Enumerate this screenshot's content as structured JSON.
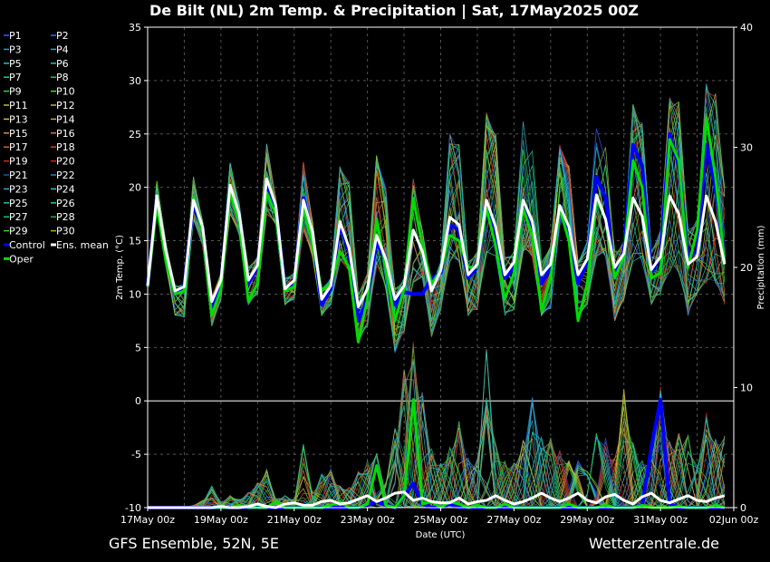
{
  "chart_data": {
    "type": "line",
    "title": "De Bilt  (NL)  2m Temp. & Precipitation | Sat, 17May2025 00Z",
    "xlabel": "Date (UTC)",
    "ylabel_left": "2m Temp. (°C)",
    "ylabel_right": "Precipitation (mm)",
    "ylim_left": [
      -10,
      35
    ],
    "ylim_right": [
      0,
      40
    ],
    "yticks_left": [
      "-10",
      "-5",
      "0",
      "5",
      "10",
      "15",
      "20",
      "25",
      "30",
      "35"
    ],
    "yticks_right": [
      "0",
      "10",
      "20",
      "30",
      "40"
    ],
    "x_tick_labels": [
      "17May 00z",
      "19May 00z",
      "21May 00z",
      "23May 00z",
      "25May 00z",
      "27May 00z",
      "29May 00z",
      "31May 00z",
      "02Jun 00z"
    ],
    "x_range_days": [
      0,
      16
    ],
    "step_hours": 6,
    "grid": true,
    "legend_position": "left",
    "legend": [
      {
        "name": "P1",
        "color": "#3a5bff"
      },
      {
        "name": "P2",
        "color": "#1f6fff"
      },
      {
        "name": "P3",
        "color": "#3e86d8"
      },
      {
        "name": "P4",
        "color": "#2aa6c8"
      },
      {
        "name": "P5",
        "color": "#30b8c8"
      },
      {
        "name": "P6",
        "color": "#20c8a0"
      },
      {
        "name": "P7",
        "color": "#20c890"
      },
      {
        "name": "P8",
        "color": "#28c060"
      },
      {
        "name": "P9",
        "color": "#30d050"
      },
      {
        "name": "P10",
        "color": "#40e020"
      },
      {
        "name": "P11",
        "color": "#b8c030"
      },
      {
        "name": "P12",
        "color": "#c8b040"
      },
      {
        "name": "P13",
        "color": "#d0c040"
      },
      {
        "name": "P14",
        "color": "#d0a030"
      },
      {
        "name": "P15",
        "color": "#c89060"
      },
      {
        "name": "P16",
        "color": "#c87850"
      },
      {
        "name": "P17",
        "color": "#d06030"
      },
      {
        "name": "P18",
        "color": "#d04020"
      },
      {
        "name": "P19",
        "color": "#c03020"
      },
      {
        "name": "P20",
        "color": "#d02020"
      },
      {
        "name": "P21",
        "color": "#2050c0"
      },
      {
        "name": "P22",
        "color": "#2080e0"
      },
      {
        "name": "P23",
        "color": "#40a0d0"
      },
      {
        "name": "P24",
        "color": "#30c0d0"
      },
      {
        "name": "P25",
        "color": "#20c0b0"
      },
      {
        "name": "P26",
        "color": "#20d0a0"
      },
      {
        "name": "P27",
        "color": "#20c070"
      },
      {
        "name": "P28",
        "color": "#20b040"
      },
      {
        "name": "P29",
        "color": "#40d020"
      },
      {
        "name": "P30",
        "color": "#a0c020"
      },
      {
        "name": "Control",
        "color": "#0000ff"
      },
      {
        "name": "Ens. mean",
        "color": "#ffffff"
      },
      {
        "name": "Oper",
        "color": "#00dd00"
      }
    ],
    "series": [
      {
        "name": "Ens. mean",
        "temp": [
          10.8,
          19.2,
          14,
          10.3,
          10.7,
          18.8,
          16.3,
          9.3,
          11.3,
          20.2,
          17.5,
          11.3,
          12.7,
          20.8,
          18.3,
          10.5,
          11.3,
          18.8,
          15.8,
          9.5,
          10.8,
          16.8,
          14.3,
          8.8,
          10.5,
          15.5,
          13.3,
          9.5,
          10.8,
          16,
          14,
          10.3,
          12.2,
          17.2,
          16.5,
          11.8,
          12.8,
          18.8,
          16.3,
          11.8,
          13,
          18.8,
          16.8,
          11.8,
          12.8,
          18.3,
          16.3,
          11.8,
          13.3,
          19.3,
          17,
          12.5,
          13.8,
          19,
          17.3,
          12.3,
          13.5,
          19.2,
          17.5,
          12.8,
          13.5,
          19.2,
          16.8,
          12.8
        ],
        "precip": [
          0,
          0,
          0,
          0,
          0,
          0,
          0,
          0,
          0.1,
          0,
          0,
          0.1,
          0.3,
          0.1,
          0,
          0.3,
          0.4,
          0.2,
          0.2,
          0.5,
          0.6,
          0.3,
          0.4,
          0.7,
          1,
          0.5,
          0.8,
          1.2,
          1.3,
          0.6,
          0.8,
          0.5,
          0.4,
          0.4,
          0.8,
          0.3,
          0.5,
          0.6,
          1,
          0.6,
          0.3,
          0.5,
          0.8,
          1.2,
          0.8,
          0.5,
          0.8,
          1.2,
          0.6,
          0.4,
          0.9,
          1.1,
          0.6,
          0.3,
          0.9,
          1.2,
          0.6,
          0.4,
          0.7,
          1,
          0.6,
          0.5,
          0.8,
          1
        ]
      },
      {
        "name": "Oper",
        "temp": [
          10.7,
          18.3,
          13,
          10,
          10.3,
          19,
          15.8,
          8,
          10.5,
          19.5,
          16.8,
          9.3,
          11,
          19.5,
          17.5,
          10.3,
          10.7,
          18,
          14.8,
          10.3,
          11,
          14,
          12.5,
          5.5,
          9.5,
          17,
          12.5,
          7.5,
          10.5,
          19,
          14.5,
          11,
          12.2,
          15.5,
          15,
          12.5,
          12.5,
          18,
          14.5,
          9.5,
          12,
          18,
          15.5,
          8.5,
          11.5,
          18,
          15,
          7.5,
          11,
          19,
          17,
          11.5,
          13.5,
          22.5,
          20,
          11.5,
          12,
          24.5,
          22.5,
          12.5,
          16,
          26.5,
          21,
          13
        ],
        "precip": [
          0,
          0,
          0,
          0,
          0,
          0,
          0,
          0,
          0,
          0,
          0.2,
          0,
          0,
          0,
          0.5,
          0,
          0,
          0,
          0,
          0,
          0.2,
          0.5,
          0,
          0,
          0.3,
          3.5,
          0.2,
          0,
          1,
          9,
          0.3,
          0.5,
          0,
          0.5,
          0.3,
          0,
          0.2,
          0,
          0,
          0.3,
          0,
          0,
          0,
          0,
          0,
          0,
          0.3,
          0,
          0,
          0,
          0.2,
          0,
          0,
          0,
          0.2,
          0,
          0,
          0,
          0.1,
          0,
          0,
          0,
          0.2,
          0
        ]
      },
      {
        "name": "Control",
        "temp": [
          10.8,
          19,
          13.5,
          10,
          10.8,
          18.5,
          16,
          8.5,
          11,
          20,
          17,
          11,
          12.5,
          20.5,
          18,
          10.5,
          11,
          19,
          15.5,
          9,
          10.5,
          16.5,
          14,
          7.5,
          9.5,
          15,
          13,
          9,
          10.2,
          10,
          10,
          11.5,
          12,
          16.5,
          16,
          11.5,
          12.5,
          18,
          16,
          11.5,
          12.5,
          18,
          16,
          11,
          12.5,
          18,
          16,
          11,
          13,
          21,
          19,
          11.5,
          14,
          24,
          22,
          12,
          13.5,
          25,
          22,
          13.5,
          14,
          24,
          20,
          13.5
        ],
        "precip": [
          0,
          0,
          0,
          0,
          0,
          0,
          0,
          0,
          0,
          0,
          0,
          0,
          0,
          0,
          0,
          0,
          0,
          0,
          0,
          0,
          0,
          0,
          0,
          0,
          0.2,
          0.5,
          0.2,
          0,
          1,
          2,
          0.3,
          0,
          0,
          0.3,
          0,
          0,
          0,
          0,
          0,
          0,
          0,
          0,
          0,
          0,
          0,
          0,
          0,
          0,
          0,
          0,
          0,
          0,
          0,
          0,
          0.2,
          5,
          9,
          0.3,
          0,
          0,
          0,
          0,
          0,
          0
        ]
      }
    ],
    "ensemble_band": {
      "temp_max": [
        10.8,
        20.6,
        14.8,
        10.8,
        11,
        21,
        16.8,
        9.8,
        12,
        22.3,
        18.5,
        12.5,
        13.5,
        24.1,
        19,
        11.5,
        12,
        22.4,
        16.8,
        10.5,
        11.5,
        22,
        20.6,
        10,
        12,
        23,
        20,
        10.5,
        11.5,
        20.8,
        16,
        11,
        13,
        25,
        24,
        13,
        14,
        27,
        25,
        13.5,
        14,
        27,
        25,
        13,
        14.5,
        24,
        22,
        13,
        15,
        25.7,
        24,
        14,
        15,
        27.8,
        26,
        14,
        16,
        28.4,
        28,
        16,
        17,
        29.8,
        29,
        20
      ],
      "temp_min": [
        10.5,
        17.8,
        12.5,
        8,
        7.8,
        17,
        14.5,
        7,
        9.5,
        17.5,
        15.5,
        9,
        10,
        17.5,
        16.5,
        9,
        9.5,
        16,
        13.5,
        8,
        9,
        13,
        12,
        5.5,
        7,
        12.5,
        10.5,
        4.5,
        6.5,
        11,
        11.5,
        6,
        8.5,
        13,
        13,
        8,
        8.5,
        13.5,
        13.5,
        8,
        8.5,
        14,
        13.5,
        8,
        8.5,
        13,
        13,
        7.5,
        9,
        13.5,
        13.5,
        7.5,
        9.5,
        13,
        13,
        9,
        10,
        12,
        12,
        8,
        10,
        11,
        11,
        9
      ],
      "precip_max": [
        0,
        0,
        0,
        0,
        0,
        0.2,
        0.6,
        1.8,
        0.5,
        1,
        0.7,
        1.3,
        2.1,
        3.2,
        0.8,
        1,
        0.7,
        5.3,
        1.3,
        2.8,
        3.2,
        1.8,
        1.7,
        3,
        4,
        4.5,
        2.2,
        7,
        11.5,
        13.8,
        9.6,
        4.9,
        3.7,
        5,
        7.2,
        4.2,
        4,
        13.2,
        5.3,
        3.9,
        3.7,
        5.6,
        9.3,
        5.9,
        5.8,
        4.8,
        3.9,
        4.1,
        3.3,
        6.2,
        6.1,
        4.1,
        9.9,
        5.4,
        3.9,
        4.3,
        10.2,
        5.5,
        6.2,
        6.1,
        3.7,
        7.9,
        5.8,
        6.1
      ]
    }
  },
  "footer": {
    "left": "GFS Ensemble, 52N, 5E",
    "right": "Wetterzentrale.de"
  }
}
